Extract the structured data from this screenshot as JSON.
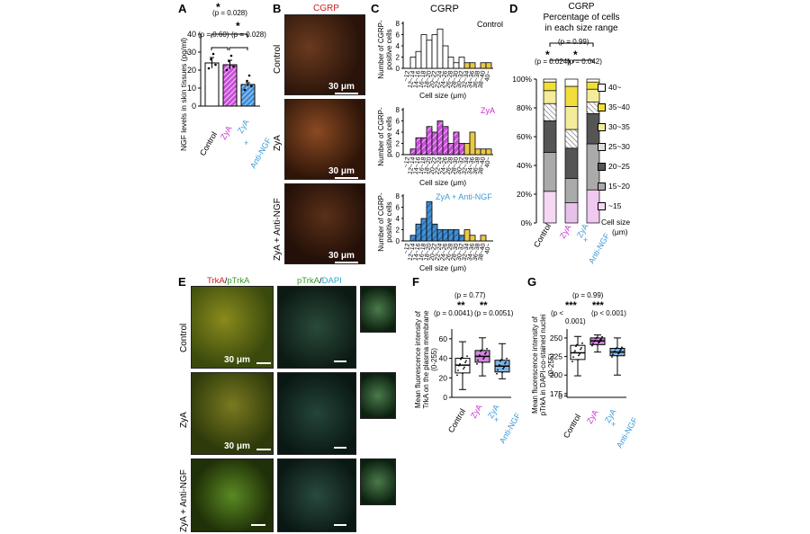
{
  "panels": {
    "A": {
      "letter": "A",
      "ylabel": "NGF levels in skin tissues (pg/ml)",
      "stats": [
        "(p = 0.028)",
        "(p = 0.60)",
        "(p = 0.028)"
      ],
      "groups": [
        "Control",
        "ZyA",
        "ZyA",
        "+",
        "Anti-NGF"
      ],
      "yticks": [
        "0",
        "10",
        "20",
        "30",
        "40"
      ]
    },
    "B": {
      "letter": "B",
      "title": "CGRP",
      "rows": [
        "Control",
        "ZyA",
        "ZyA + Anti-NGF"
      ],
      "scale": "30 μm"
    },
    "C": {
      "letter": "C",
      "title": "CGRP",
      "ylabel": "Number of CGRP-positive cells",
      "xlabel": "Cell size (μm)",
      "yticks": [
        "0",
        "2",
        "4",
        "6",
        "8"
      ],
      "series_labels": [
        "Control",
        "ZyA",
        "ZyA + Anti-NGF"
      ]
    },
    "D": {
      "letter": "D",
      "title_lines": [
        "CGRP",
        "Percentage of cells",
        "in each size range"
      ],
      "stats": [
        "(p = 0.99)",
        "(p = 0.024)",
        "(p = 0.042)"
      ],
      "yticks": [
        "0%",
        "20%",
        "40%",
        "60%",
        "80%",
        "100%"
      ],
      "groups": [
        "Control",
        "ZyA",
        "ZyA",
        "+",
        "Anti-NGF"
      ],
      "legend": [
        "40~",
        "35~40",
        "30~35",
        "25~30",
        "20~25",
        "15~20",
        "~15"
      ],
      "legend_title": [
        "Cell size",
        "(μm)"
      ]
    },
    "E": {
      "letter": "E",
      "col1_a": "TrkA",
      "col1_sep": "/",
      "col1_b": "pTrkA",
      "col2_a": "pTrkA",
      "col2_sep": "/",
      "col2_b": "DAPI",
      "rows": [
        "Control",
        "ZyA",
        "ZyA + Anti-NGF"
      ],
      "scale": "30 μm"
    },
    "F": {
      "letter": "F",
      "ylabel": "Mean fluorescence intensity of TrkA on the plasma membrane (0-255)",
      "stats": [
        "(p = 0.77)",
        "(p = 0.0041)",
        "(p = 0.0051)"
      ],
      "stars": [
        "**",
        "**"
      ],
      "yticks": [
        "0",
        "20",
        "40",
        "60"
      ],
      "groups": [
        "Control",
        "ZyA",
        "ZyA",
        "+",
        "Anti-NGF"
      ]
    },
    "G": {
      "letter": "G",
      "ylabel": "Mean fluorescence intensity of pTrkA in DAPI-co-stained nuclei (0-255)",
      "stats": [
        "(p = 0.99)",
        "(p <",
        "0.001)",
        "(p < 0.001)"
      ],
      "stars": [
        "***",
        "***"
      ],
      "yticks": [
        "0",
        "175",
        "200",
        "225",
        "250"
      ],
      "groups": [
        "Control",
        "ZyA",
        "ZyA",
        "+",
        "Anti-NGF"
      ]
    }
  },
  "colors": {
    "control": "#ffffff",
    "zya": "#c84fd8",
    "anti": "#3f8fd6",
    "yellow": "#e8c94a",
    "text_zya": "#c32fd0",
    "text_anti": "#3a9ad9",
    "trka_red": "#c81e1e",
    "ptrka_green": "#3c9a2e",
    "dapi_cyan": "#2aa8c4"
  },
  "chart_data": [
    {
      "type": "bar",
      "title": "",
      "ylabel": "NGF levels in skin tissues (pg/ml)",
      "categories": [
        "Control",
        "ZyA",
        "ZyA + Anti-NGF"
      ],
      "values": [
        24,
        23,
        12
      ],
      "ylim": [
        0,
        40
      ]
    },
    {
      "type": "bar",
      "title": "CGRP",
      "xlabel": "Cell size (μm)",
      "ylabel": "Number of CGRP-positive cells",
      "categories": [
        "~12",
        "12~14",
        "14~16",
        "16~18",
        "18~20",
        "20~22",
        "22~24",
        "24~26",
        "26~28",
        "28~30",
        "30~32",
        "32~34",
        "34~36",
        "36~38",
        "38~40",
        "40~"
      ],
      "series": [
        {
          "name": "Control",
          "values": [
            0,
            2,
            3,
            6,
            5,
            6,
            7,
            4,
            2,
            1,
            2,
            1,
            1,
            0,
            1,
            1
          ]
        },
        {
          "name": "ZyA",
          "values": [
            0,
            1,
            3,
            3,
            5,
            4,
            6,
            5,
            2,
            4,
            2,
            2,
            4,
            1,
            1,
            1
          ]
        },
        {
          "name": "ZyA + Anti-NGF",
          "values": [
            0,
            1,
            3,
            4,
            7,
            3,
            2,
            2,
            2,
            2,
            1,
            2,
            1,
            0,
            1,
            0
          ]
        }
      ],
      "ylim": [
        0,
        8
      ]
    },
    {
      "type": "bar",
      "title": "CGRP Percentage of cells in each size range",
      "categories": [
        "Control",
        "ZyA",
        "ZyA + Anti-NGF"
      ],
      "series": [
        {
          "name": "~15",
          "values": [
            22,
            14,
            23
          ]
        },
        {
          "name": "15~20",
          "values": [
            27,
            17,
            32
          ]
        },
        {
          "name": "20~25",
          "values": [
            22,
            21,
            21
          ]
        },
        {
          "name": "25~30",
          "values": [
            12,
            13,
            8
          ]
        },
        {
          "name": "30~35",
          "values": [
            9,
            16,
            9
          ]
        },
        {
          "name": "35~40",
          "values": [
            6,
            14,
            5
          ]
        },
        {
          "name": "40~",
          "values": [
            2,
            5,
            2
          ]
        }
      ],
      "ylim": [
        0,
        100
      ]
    },
    {
      "type": "box",
      "ylabel": "Mean fluorescence intensity of TrkA on the plasma membrane (0-255)",
      "categories": [
        "Control",
        "ZyA",
        "ZyA + Anti-NGF"
      ],
      "boxes": [
        {
          "min": 8,
          "q1": 25,
          "median": 33,
          "q3": 40,
          "max": 57
        },
        {
          "min": 22,
          "q1": 36,
          "median": 42,
          "q3": 48,
          "max": 61
        },
        {
          "min": 19,
          "q1": 26,
          "median": 32,
          "q3": 38,
          "max": 55
        }
      ],
      "ylim": [
        0,
        70
      ]
    },
    {
      "type": "box",
      "ylabel": "Mean fluorescence intensity of pTrkA in DAPI-co-stained nuclei (0-255)",
      "categories": [
        "Control",
        "ZyA",
        "ZyA + Anti-NGF"
      ],
      "boxes": [
        {
          "min": 199,
          "q1": 221,
          "median": 230,
          "q3": 240,
          "max": 252
        },
        {
          "min": 231,
          "q1": 241,
          "median": 246,
          "q3": 250,
          "max": 254
        },
        {
          "min": 200,
          "q1": 226,
          "median": 231,
          "q3": 236,
          "max": 250
        }
      ],
      "ylim": [
        170,
        262
      ]
    }
  ]
}
